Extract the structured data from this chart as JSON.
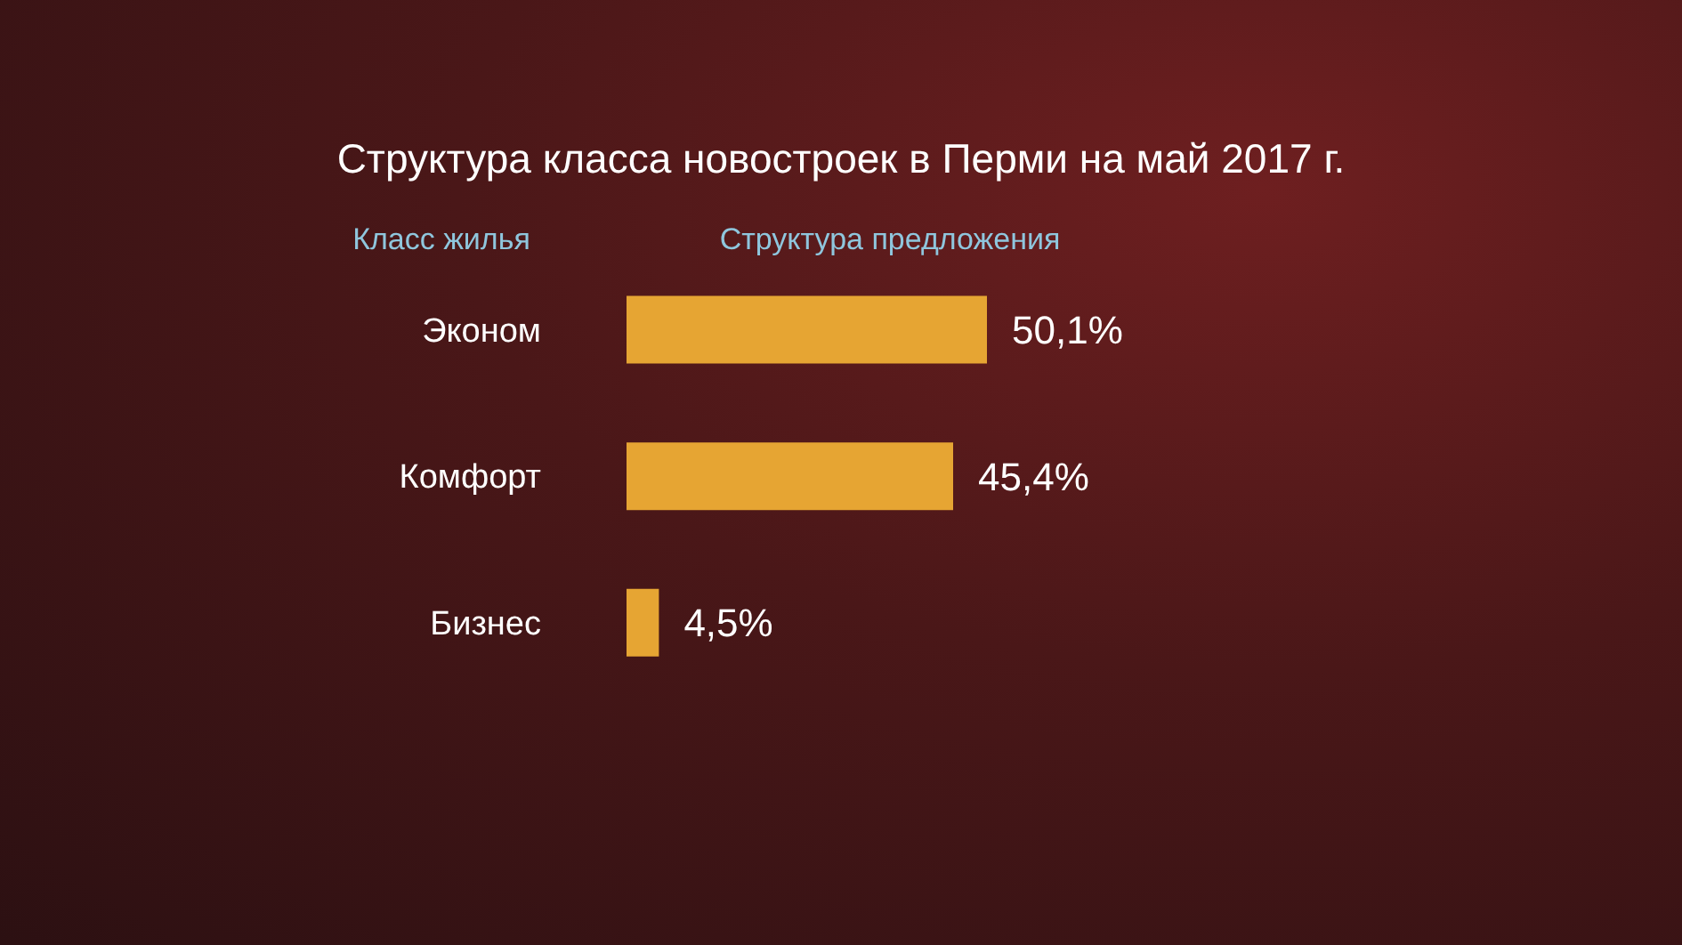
{
  "chart_data": {
    "type": "bar",
    "orientation": "horizontal",
    "title": "Структура класса новостроек в Перми на май 2017 г.",
    "ylabel": "Класс жилья",
    "xlabel": "Структура предложения",
    "categories": [
      "Эконом",
      "Комфорт",
      "Бизнес"
    ],
    "values": [
      50.1,
      45.4,
      4.5
    ],
    "value_labels": [
      "50,1%",
      "45,4%",
      "4,5%"
    ],
    "color": "#e6a533",
    "tick_labels": "y"
  }
}
